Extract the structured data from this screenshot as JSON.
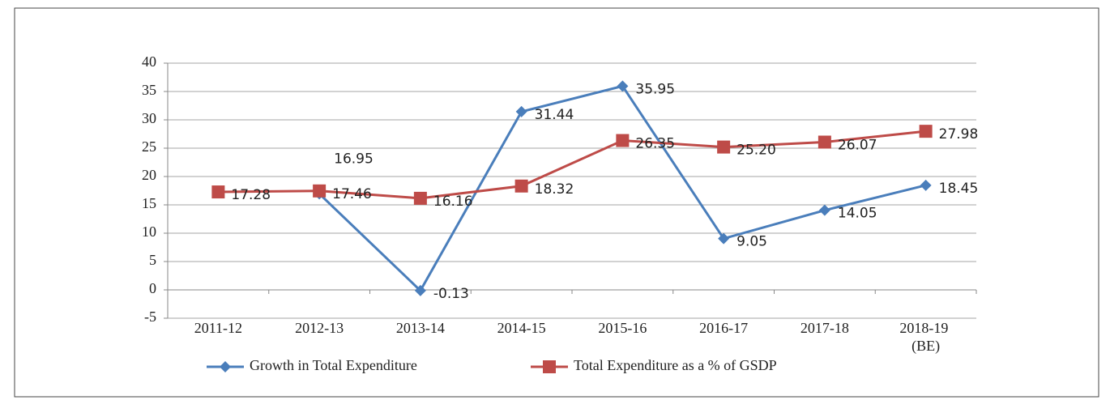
{
  "chart_data": {
    "type": "line",
    "categories": [
      "2011-12",
      "2012-13",
      "2013-14",
      "2014-15",
      "2015-16",
      "2016-17",
      "2017-18",
      "2018-19 (BE)"
    ],
    "series": [
      {
        "name": "Growth in Total Expenditure",
        "color": "#4a7ebb",
        "values": [
          null,
          16.95,
          -0.13,
          31.44,
          35.95,
          9.05,
          14.05,
          18.45
        ]
      },
      {
        "name": "Total Expenditure as a % of GSDP",
        "color": "#be4b48",
        "values": [
          17.28,
          17.46,
          16.16,
          18.32,
          26.35,
          25.2,
          26.07,
          27.98
        ],
        "value_labels": [
          "17.28",
          "17.46",
          "16.16",
          "18.32",
          "26.35",
          "25.20",
          "26.07",
          "27.98"
        ]
      }
    ],
    "ylim": [
      -5,
      40
    ],
    "yticks": [
      -5,
      0,
      5,
      10,
      15,
      20,
      25,
      30,
      35,
      40
    ],
    "grid": true,
    "legend": "bottom"
  }
}
